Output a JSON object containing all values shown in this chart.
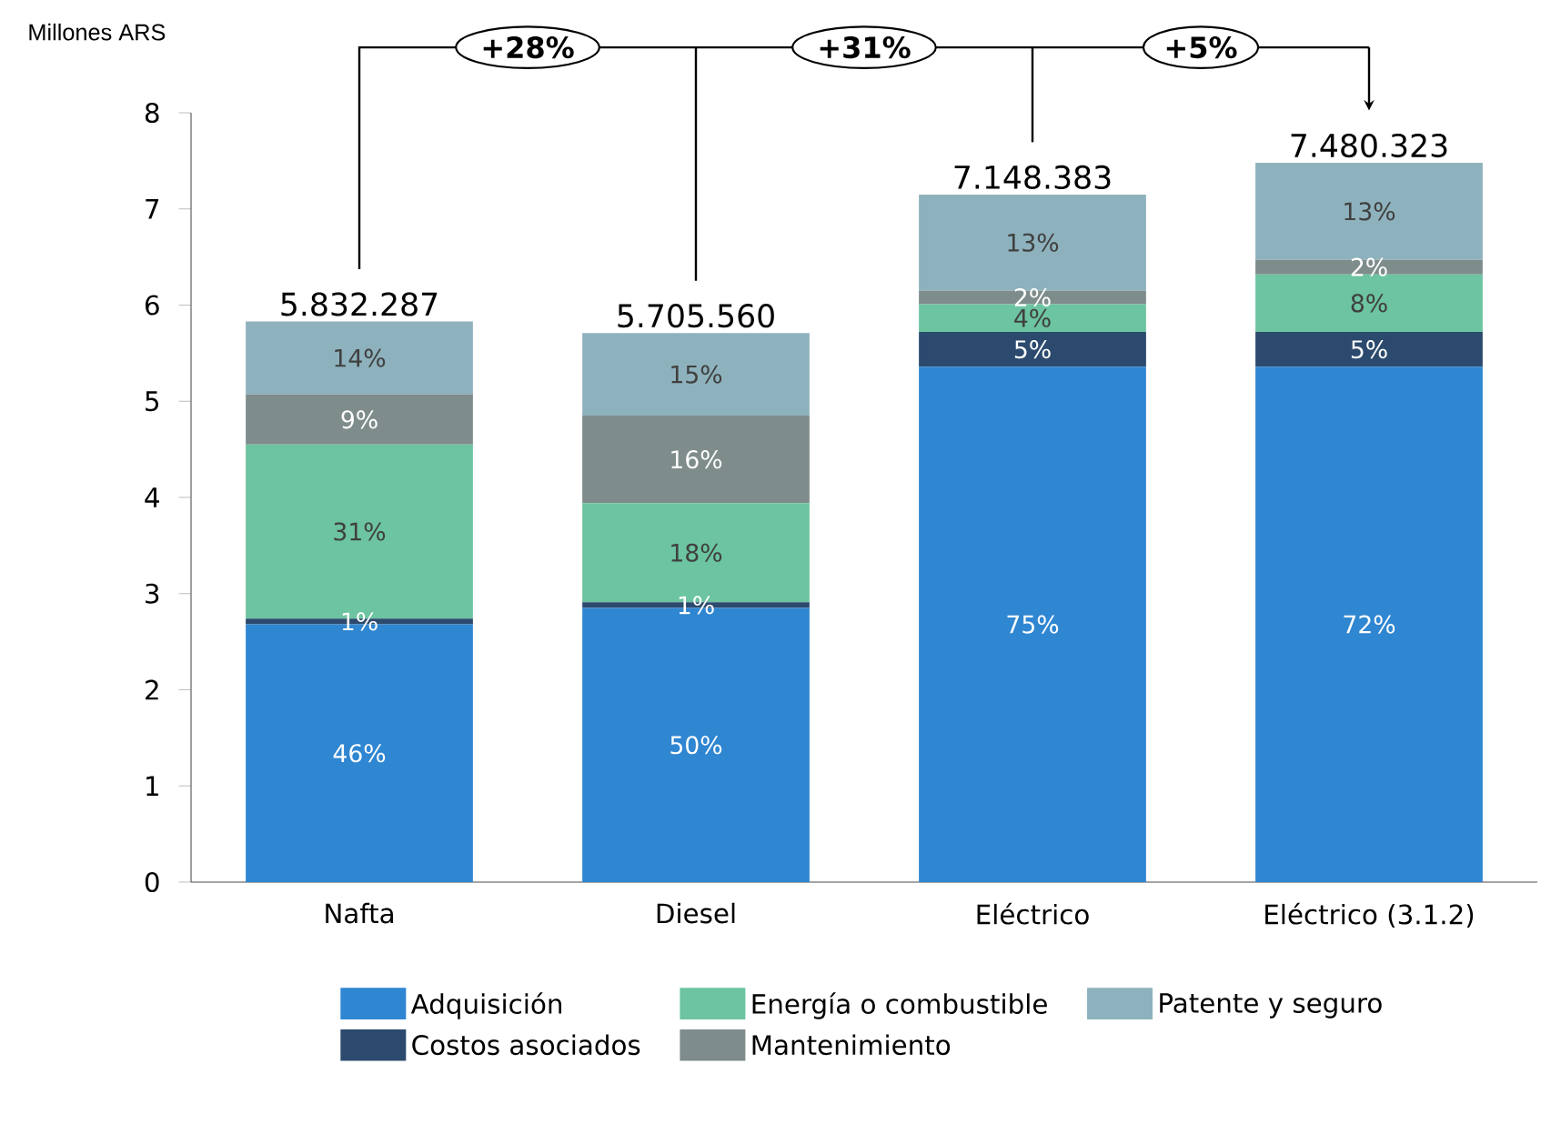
{
  "chart_data": {
    "type": "bar",
    "stacked": true,
    "ylabel": "Millones ARS",
    "categories": [
      "Nafta",
      "Diesel",
      "Eléctrico",
      "Eléctrico (3.1.2)"
    ],
    "ylim": [
      0,
      8
    ],
    "yticks": [
      0,
      1,
      2,
      3,
      4,
      5,
      6,
      7,
      8
    ],
    "legend": "bottom",
    "series": [
      {
        "name": "Adquisición",
        "color": "#2f86d1",
        "values": [
          2.68,
          2.85,
          5.36,
          5.36
        ]
      },
      {
        "name": "Costos asociados",
        "color": "#2c4a6e",
        "values": [
          0.06,
          0.06,
          0.36,
          0.36
        ]
      },
      {
        "name": "Energía o combustible",
        "color": "#6cc4a0",
        "values": [
          1.81,
          1.03,
          0.29,
          0.6
        ]
      },
      {
        "name": "Mantenimiento",
        "color": "#7f8c8c",
        "values": [
          0.52,
          0.91,
          0.14,
          0.15
        ]
      },
      {
        "name": "Patente y seguro",
        "color": "#8eb2bd",
        "values": [
          0.76,
          0.86,
          1.0,
          1.01
        ]
      }
    ],
    "annotations": [
      "+28%",
      "+31%",
      "+5%",
      "46%",
      "50%",
      "75%",
      "72%",
      "1%",
      "1%",
      "5%",
      "5%",
      "31%",
      "18%",
      "4%",
      "8%",
      "9%",
      "16%",
      "2%",
      "2%",
      "14%",
      "15%",
      "13%",
      "13%",
      "5.832.287",
      "5.705.560",
      "7.148.383",
      "7.480.323"
    ]
  }
}
